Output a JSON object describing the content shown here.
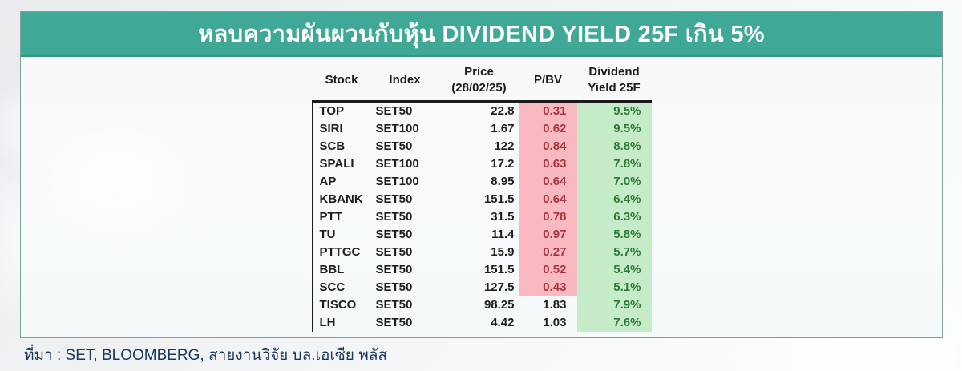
{
  "banner": {
    "title": "หลบความผันผวนกับหุ้น DIVIDEND YIELD 25F เกิน 5%"
  },
  "colors": {
    "banner_teal": "#3fa896",
    "pbv_highlight_bg": "#f8b9c1",
    "pbv_highlight_text": "#a8343c",
    "yield_bg": "#c6ebc9",
    "yield_text": "#2b7a36"
  },
  "table": {
    "headers": [
      {
        "line1": "Stock",
        "line2": ""
      },
      {
        "line1": "Index",
        "line2": ""
      },
      {
        "line1": "Price",
        "line2": "(28/02/25)"
      },
      {
        "line1": "P/BV",
        "line2": ""
      },
      {
        "line1": "Dividend",
        "line2": "Yield 25F"
      }
    ],
    "rows": [
      {
        "stock": "TOP",
        "index": "SET50",
        "price": "22.8",
        "pbv": "0.31",
        "dy": "9.5%",
        "pbv_highlight": true
      },
      {
        "stock": "SIRI",
        "index": "SET100",
        "price": "1.67",
        "pbv": "0.62",
        "dy": "9.5%",
        "pbv_highlight": true
      },
      {
        "stock": "SCB",
        "index": "SET50",
        "price": "122",
        "pbv": "0.84",
        "dy": "8.8%",
        "pbv_highlight": true
      },
      {
        "stock": "SPALI",
        "index": "SET100",
        "price": "17.2",
        "pbv": "0.63",
        "dy": "7.8%",
        "pbv_highlight": true
      },
      {
        "stock": "AP",
        "index": "SET100",
        "price": "8.95",
        "pbv": "0.64",
        "dy": "7.0%",
        "pbv_highlight": true
      },
      {
        "stock": "KBANK",
        "index": "SET50",
        "price": "151.5",
        "pbv": "0.64",
        "dy": "6.4%",
        "pbv_highlight": true
      },
      {
        "stock": "PTT",
        "index": "SET50",
        "price": "31.5",
        "pbv": "0.78",
        "dy": "6.3%",
        "pbv_highlight": true
      },
      {
        "stock": "TU",
        "index": "SET50",
        "price": "11.4",
        "pbv": "0.97",
        "dy": "5.8%",
        "pbv_highlight": true
      },
      {
        "stock": "PTTGC",
        "index": "SET50",
        "price": "15.9",
        "pbv": "0.27",
        "dy": "5.7%",
        "pbv_highlight": true
      },
      {
        "stock": "BBL",
        "index": "SET50",
        "price": "151.5",
        "pbv": "0.52",
        "dy": "5.4%",
        "pbv_highlight": true
      },
      {
        "stock": "SCC",
        "index": "SET50",
        "price": "127.5",
        "pbv": "0.43",
        "dy": "5.1%",
        "pbv_highlight": true
      },
      {
        "stock": "TISCO",
        "index": "SET50",
        "price": "98.25",
        "pbv": "1.83",
        "dy": "7.9%",
        "pbv_highlight": false
      },
      {
        "stock": "LH",
        "index": "SET50",
        "price": "4.42",
        "pbv": "1.03",
        "dy": "7.6%",
        "pbv_highlight": false
      }
    ]
  },
  "source": {
    "text": "ที่มา : SET, BLOOMBERG, สายงานวิจัย บล.เอเซีย พลัส"
  }
}
